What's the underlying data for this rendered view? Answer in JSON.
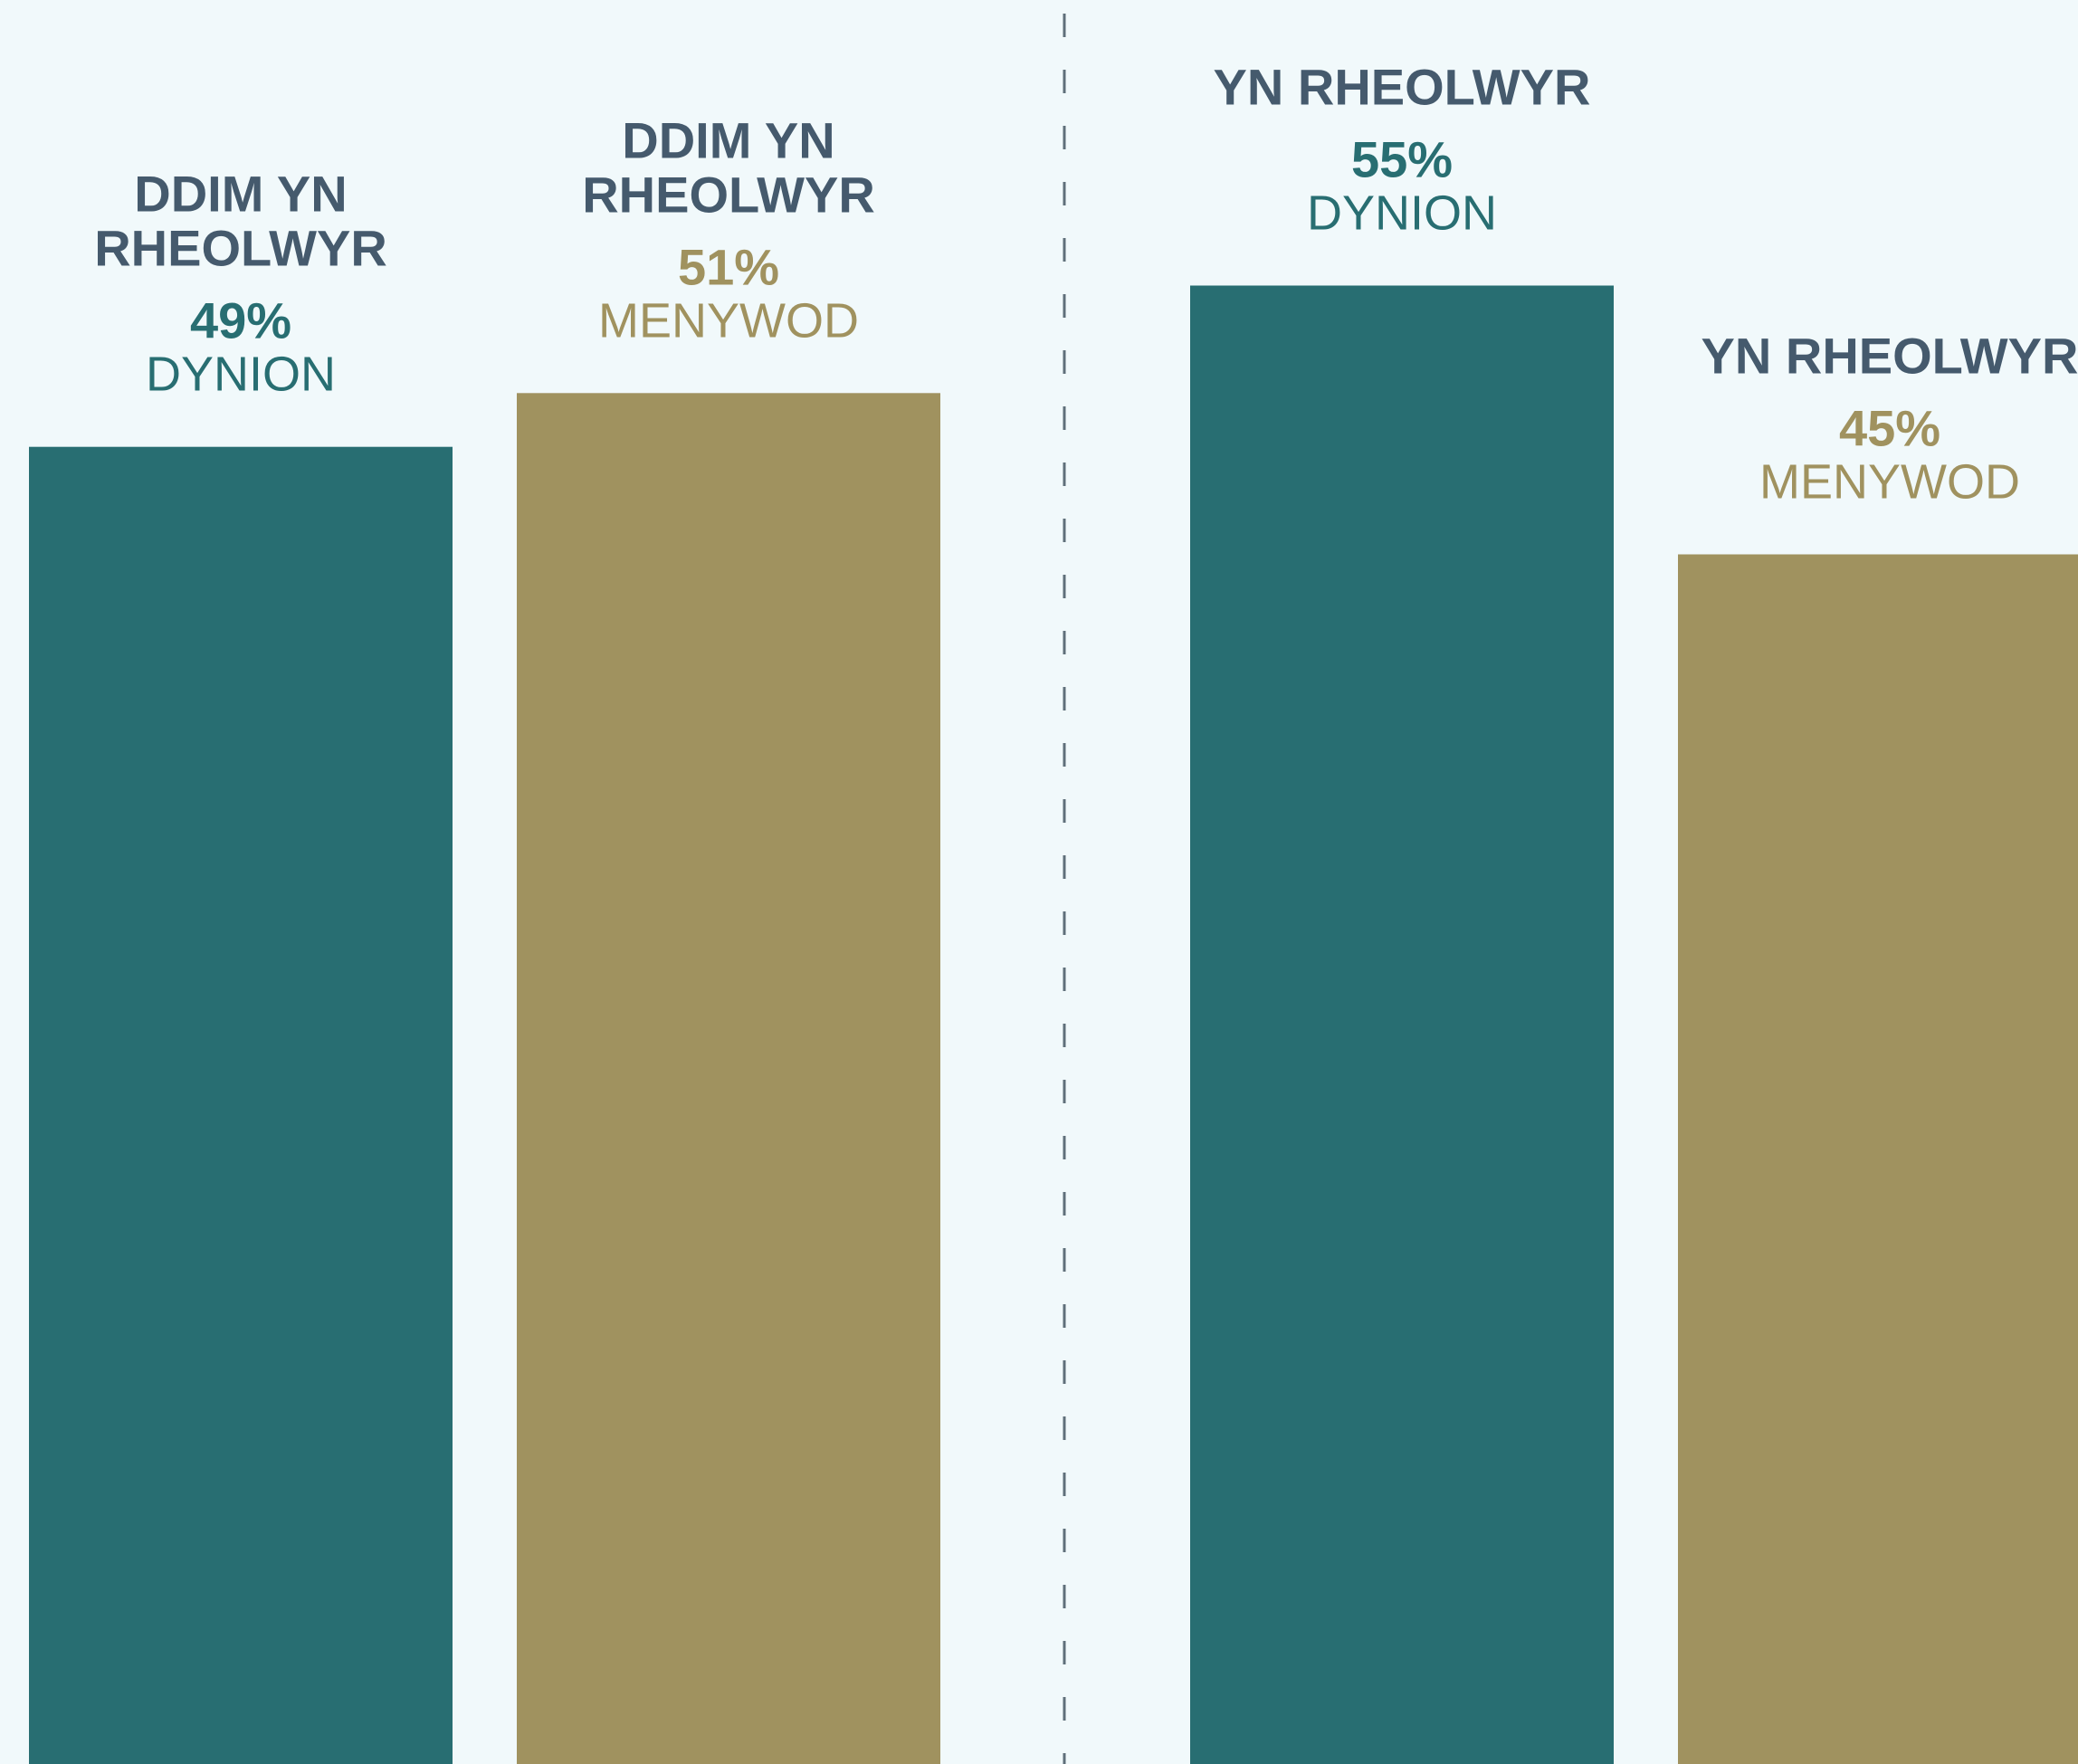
{
  "chart_data": {
    "type": "bar",
    "groups": [
      {
        "label_lines": [
          "DDIM YN",
          "RHEOLWYR"
        ],
        "bars": [
          {
            "value": 49,
            "value_label": "49%",
            "series_label": "DYNION",
            "series": "men"
          },
          {
            "value": 51,
            "value_label": "51%",
            "series_label": "MENYWOD",
            "series": "women",
            "label_lines": [
              "DDIM YN",
              "RHEOLWYR"
            ]
          }
        ]
      },
      {
        "label_lines": [
          "YN RHEOLWYR"
        ],
        "bars": [
          {
            "value": 55,
            "value_label": "55%",
            "series_label": "DYNION",
            "series": "men"
          },
          {
            "value": 45,
            "value_label": "45%",
            "series_label": "MENYWOD",
            "series": "women",
            "label_lines": [
              "YN RHEOLWYR"
            ]
          }
        ]
      }
    ],
    "ylim": [
      0,
      100
    ],
    "grid": false,
    "legend": "none",
    "group_separator": "dashed-vertical"
  },
  "colors": {
    "background": "#f1f9fb",
    "men": "#286e72",
    "women": "#a0925f",
    "group_label": "#455a6d",
    "separator": "#5f6f7a"
  }
}
